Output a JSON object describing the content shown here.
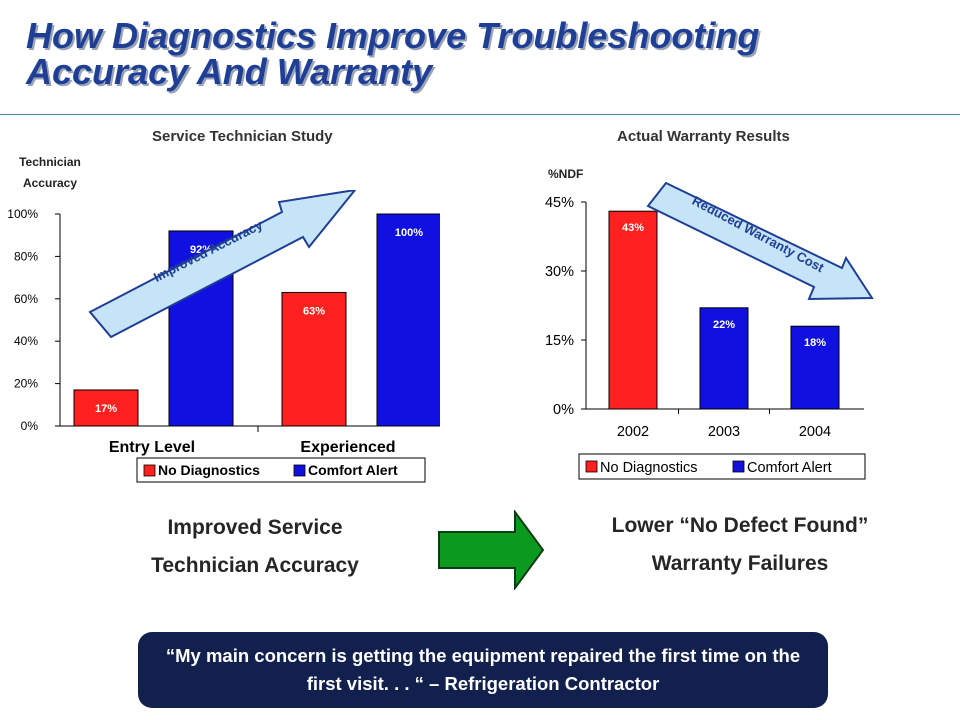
{
  "title": "How Diagnostics Improve Troubleshooting Accuracy And Warranty",
  "colors": {
    "title": "#1f3f96",
    "no_diagnostics": "#ff2020",
    "comfort_alert": "#1010e0",
    "improve_arrow": "#c6e4f7",
    "green_arrow": "#0b9a1e",
    "quote_bg": "#12204e"
  },
  "left_chart": {
    "subtitle": "Service Technician Study",
    "axis_note_line1": "Technician",
    "axis_note_line2": "Accuracy",
    "arrow_label": "Improved Accuracy",
    "legend": [
      "No Diagnostics",
      "Comfort Alert"
    ]
  },
  "right_chart": {
    "subtitle": "Actual Warranty Results",
    "axis_note": "%NDF",
    "arrow_label": "Reduced Warranty Cost",
    "legend": [
      "No Diagnostics",
      "Comfort Alert"
    ]
  },
  "captions": {
    "left": [
      "Improved Service",
      "Technician Accuracy"
    ],
    "right": [
      "Lower “No Defect Found”",
      "Warranty Failures"
    ]
  },
  "quote": "“My main concern is getting the equipment repaired the first time on the first visit. . . “ – Refrigeration Contractor",
  "chart_data": [
    {
      "type": "bar",
      "title": "Service Technician Study",
      "ylabel": "Technician Accuracy",
      "categories": [
        "Entry Level",
        "Experienced"
      ],
      "series": [
        {
          "name": "No Diagnostics",
          "values": [
            17,
            63
          ],
          "labels": [
            "17%",
            "63%"
          ]
        },
        {
          "name": "Comfort Alert",
          "values": [
            92,
            100
          ],
          "labels": [
            "92%",
            "100%"
          ]
        }
      ],
      "yticks": [
        "0%",
        "20%",
        "40%",
        "60%",
        "80%",
        "100%"
      ],
      "ylim": [
        0,
        100
      ],
      "legend": "bottom",
      "grid": false
    },
    {
      "type": "bar",
      "title": "Actual Warranty Results",
      "ylabel": "%NDF",
      "categories": [
        "2002",
        "2003",
        "2004"
      ],
      "values": [
        43,
        22,
        18
      ],
      "labels": [
        "43%",
        "22%",
        "18%"
      ],
      "bar_series": [
        "No Diagnostics",
        "Comfort Alert",
        "Comfort Alert"
      ],
      "yticks": [
        "0%",
        "15%",
        "30%",
        "45%"
      ],
      "ylim": [
        0,
        45
      ],
      "legend": "bottom",
      "grid": false
    }
  ]
}
